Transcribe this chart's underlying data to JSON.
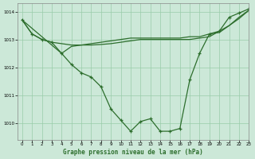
{
  "title": "Graphe pression niveau de la mer (hPa)",
  "background_color": "#cce8d8",
  "grid_color": "#99ccaa",
  "line_color": "#2d6e2d",
  "xlim": [
    -0.5,
    23
  ],
  "ylim": [
    1009.4,
    1014.3
  ],
  "yticks": [
    1010,
    1011,
    1012,
    1013,
    1014
  ],
  "xticks": [
    0,
    1,
    2,
    3,
    4,
    5,
    6,
    7,
    8,
    9,
    10,
    11,
    12,
    13,
    14,
    15,
    16,
    17,
    18,
    19,
    20,
    21,
    22,
    23
  ],
  "series1_x": [
    0,
    1,
    2,
    3,
    4,
    5,
    6,
    7,
    8,
    9,
    10,
    11,
    12,
    13,
    14,
    15,
    16,
    17,
    18,
    19,
    20,
    21,
    22,
    23
  ],
  "series1_y": [
    1013.7,
    1013.2,
    1013.0,
    1012.9,
    1012.5,
    1012.1,
    1011.8,
    1011.65,
    1011.3,
    1010.5,
    1010.1,
    1009.7,
    1010.05,
    1010.15,
    1009.7,
    1009.7,
    1009.8,
    1011.55,
    1012.5,
    1013.2,
    1013.3,
    1013.8,
    1013.95,
    1014.1
  ],
  "series2_x": [
    0,
    1,
    2,
    3,
    4,
    5,
    6,
    7,
    8,
    9,
    10,
    11,
    12,
    13,
    14,
    15,
    16,
    17,
    18,
    19,
    20,
    21,
    22,
    23
  ],
  "series2_y": [
    1013.7,
    1013.2,
    1013.0,
    1012.9,
    1012.85,
    1012.8,
    1012.8,
    1012.85,
    1012.9,
    1012.95,
    1013.0,
    1013.05,
    1013.05,
    1013.05,
    1013.05,
    1013.05,
    1013.05,
    1013.1,
    1013.1,
    1013.2,
    1013.25,
    1013.5,
    1013.75,
    1014.05
  ],
  "series3_x": [
    0,
    4,
    5,
    6,
    7,
    8,
    9,
    10,
    11,
    12,
    13,
    14,
    15,
    16,
    17,
    18,
    19,
    20,
    21,
    22,
    23
  ],
  "series3_y": [
    1013.7,
    1012.5,
    1012.75,
    1012.8,
    1012.8,
    1012.82,
    1012.85,
    1012.9,
    1012.95,
    1013.0,
    1013.0,
    1013.0,
    1013.0,
    1013.0,
    1013.0,
    1013.05,
    1013.1,
    1013.3,
    1013.5,
    1013.8,
    1014.05
  ]
}
